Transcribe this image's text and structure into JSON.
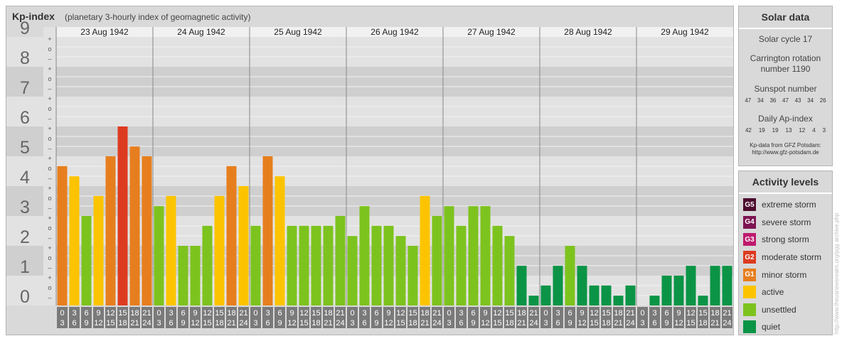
{
  "header": {
    "title": "Kp-index",
    "subtitle": "(planetary 3-hourly index of geomagnetic activity)"
  },
  "chart_data": {
    "type": "bar",
    "ylim": [
      0,
      9
    ],
    "y_ticks": [
      "0",
      "1",
      "2",
      "3",
      "4",
      "5",
      "6",
      "7",
      "8",
      "9"
    ],
    "minor_tick_labels": [
      "+",
      "o",
      "–"
    ],
    "days": [
      "23 Aug 1942",
      "24 Aug 1942",
      "25 Aug 1942",
      "26 Aug 1942",
      "27 Aug 1942",
      "28 Aug 1942",
      "29 Aug 1942"
    ],
    "interval_start": [
      "0",
      "3",
      "6",
      "9",
      "12",
      "15",
      "18",
      "21"
    ],
    "interval_end": [
      "3",
      "6",
      "9",
      "12",
      "15",
      "18",
      "21",
      "24"
    ],
    "values": [
      4.67,
      4.33,
      3.0,
      3.67,
      5.0,
      6.0,
      5.33,
      5.0,
      3.33,
      3.67,
      2.0,
      2.0,
      2.67,
      3.67,
      4.67,
      4.0,
      2.67,
      5.0,
      4.33,
      2.67,
      2.67,
      2.67,
      2.67,
      3.0,
      2.33,
      3.33,
      2.67,
      2.67,
      2.33,
      2.0,
      3.67,
      3.0,
      3.33,
      2.67,
      3.33,
      3.33,
      2.67,
      2.33,
      1.33,
      0.33,
      0.67,
      1.33,
      2.0,
      1.33,
      0.67,
      0.67,
      0.33,
      0.67,
      0.0,
      0.33,
      1.0,
      1.0,
      1.33,
      0.33,
      1.33,
      1.33
    ],
    "colors": {
      "quiet": "#0b9446",
      "unsettled": "#7dc31e",
      "active": "#fcc400",
      "minor": "#e77e1e",
      "moderate": "#dd3b20",
      "strong": "#be1a6e",
      "severe": "#7c1552",
      "extreme": "#4c0c2e"
    }
  },
  "solar": {
    "title": "Solar data",
    "cycle": "Solar cycle 17",
    "carrington_line1": "Carrington rotation",
    "carrington_line2": "number 1190",
    "sunspot_label": "Sunspot number",
    "sunspot_values": [
      "47",
      "34",
      "36",
      "47",
      "43",
      "34",
      "26"
    ],
    "ap_label": "Daily Ap-index",
    "ap_values": [
      "42",
      "19",
      "19",
      "13",
      "12",
      "4",
      "3"
    ],
    "credit_line1": "Kp-data from GFZ Potsdam:",
    "credit_line2": "http://www.gfz-potsdam.de"
  },
  "activity": {
    "title": "Activity levels",
    "levels": [
      {
        "badge": "G5",
        "label": "extreme storm",
        "color": "#4c0c2e"
      },
      {
        "badge": "G4",
        "label": "severe storm",
        "color": "#7c1552"
      },
      {
        "badge": "G3",
        "label": "strong storm",
        "color": "#be1a6e"
      },
      {
        "badge": "G2",
        "label": "moderate storm",
        "color": "#dd3b20"
      },
      {
        "badge": "G1",
        "label": "minor storm",
        "color": "#e77e1e"
      },
      {
        "badge": "",
        "label": "active",
        "color": "#fcc400"
      },
      {
        "badge": "",
        "label": "unsettled",
        "color": "#7dc31e"
      },
      {
        "badge": "",
        "label": "quiet",
        "color": "#0b9446"
      }
    ]
  },
  "watermark": "http://www.theusnewsrealm.org/pgg archive.php"
}
